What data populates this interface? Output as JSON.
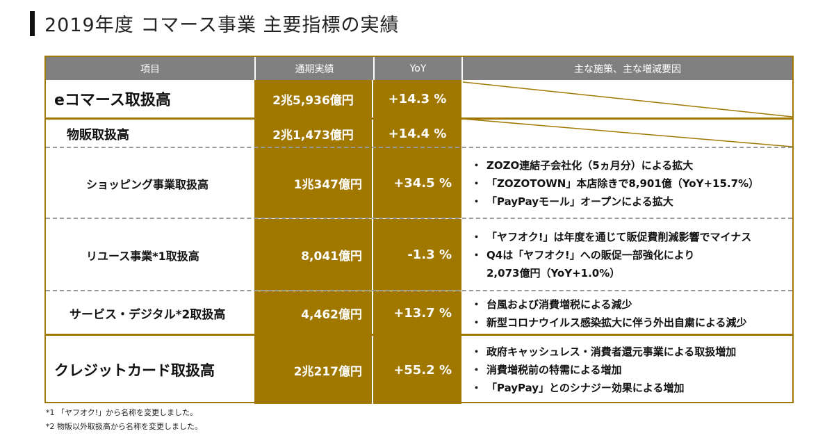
{
  "title": "2019年度 コマース事業 主要指標の実績",
  "colors": {
    "gold": "#a07800",
    "header": "#808080"
  },
  "table": {
    "headers": [
      "項目",
      "通期実績",
      "YoY",
      "主な施策、主な増減要因"
    ],
    "rows": [
      {
        "item": "eコマース取扱高",
        "value": "2兆5,936億円",
        "yoy": "+14.3 %",
        "notes": []
      },
      {
        "item": "物販取扱高",
        "value": "2兆1,473億円",
        "yoy": "+14.4 %",
        "notes": []
      },
      {
        "item": "ショッピング事業取扱高",
        "value": "1兆347億円",
        "yoy": "+34.5 %",
        "notes": [
          "ZOZO連結子会社化（5ヵ月分）による拡大",
          "「ZOZOTOWN」本店除きで8,901億（YoY+15.7%）",
          "「PayPayモール」オープンによる拡大"
        ]
      },
      {
        "item": "リユース事業*1取扱高",
        "value": "8,041億円",
        "yoy": "-1.3 %",
        "notes": [
          "「ヤフオク!」は年度を通じて販促費削減影響でマイナス",
          "Q4は「ヤフオク!」への販促一部強化により",
          "2,073億円（YoY+1.0%）"
        ]
      },
      {
        "item": "サービス・デジタル*2取扱高",
        "value": "4,462億円",
        "yoy": "+13.7 %",
        "notes": [
          "台風および消費増税による減少",
          "新型コロナウイルス感染拡大に伴う外出自粛による減少"
        ]
      },
      {
        "item": "クレジットカード取扱高",
        "value": "2兆217億円",
        "yoy": "+55.2 %",
        "notes": [
          "政府キャッシュレス・消費者還元事業による取扱増加",
          "消費増税前の特需による増加",
          "「PayPay」とのシナジー効果による増加"
        ]
      }
    ]
  },
  "bullet": "・",
  "footnotes": [
    "*1 「ヤフオク!」から名称を変更しました。",
    "*2 物販以外取扱高から名称を変更しました。"
  ]
}
